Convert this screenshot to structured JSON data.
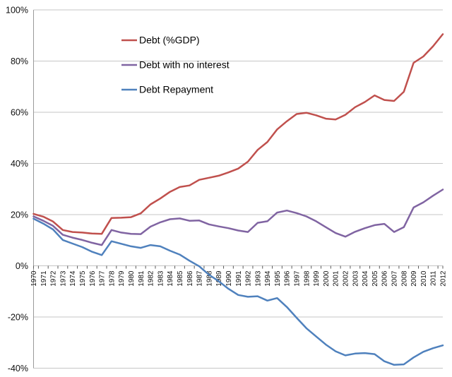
{
  "chart_data": {
    "type": "line",
    "title": "",
    "xlabel": "",
    "ylabel": "",
    "x": [
      1970,
      1971,
      1972,
      1973,
      1974,
      1975,
      1976,
      1977,
      1978,
      1979,
      1980,
      1981,
      1982,
      1983,
      1984,
      1985,
      1986,
      1987,
      1988,
      1989,
      1990,
      1991,
      1992,
      1993,
      1994,
      1995,
      1996,
      1997,
      1998,
      1999,
      2000,
      2001,
      2002,
      2003,
      2004,
      2005,
      2006,
      2007,
      2008,
      2009,
      2010,
      2011,
      2012
    ],
    "series": [
      {
        "name": "Debt (%GDP)",
        "color": "#C0504D",
        "values": [
          20.3,
          19.2,
          17.3,
          14.0,
          13.2,
          13.0,
          12.6,
          12.5,
          18.7,
          18.8,
          19.0,
          20.5,
          24.0,
          26.3,
          28.9,
          30.8,
          31.4,
          33.6,
          34.4,
          35.2,
          36.5,
          38.0,
          40.7,
          45.3,
          48.4,
          53.3,
          56.5,
          59.3,
          59.8,
          58.8,
          57.5,
          57.2,
          59.0,
          62.0,
          64.0,
          66.6,
          64.8,
          64.4,
          68.0,
          79.3,
          81.8,
          85.8,
          90.5
        ]
      },
      {
        "name": "Debt with no interest",
        "color": "#8064A2",
        "values": [
          19.3,
          17.6,
          15.6,
          12.1,
          11.0,
          10.1,
          9.0,
          8.1,
          14.0,
          13.0,
          12.5,
          12.4,
          15.3,
          17.0,
          18.2,
          18.5,
          17.6,
          17.7,
          16.2,
          15.4,
          14.7,
          13.8,
          13.2,
          16.8,
          17.4,
          20.8,
          21.6,
          20.6,
          19.3,
          17.4,
          15.1,
          12.8,
          11.4,
          13.3,
          14.7,
          15.9,
          16.4,
          13.2,
          15.1,
          22.8,
          24.8,
          27.4,
          29.8
        ]
      },
      {
        "name": "Debt Repayment",
        "color": "#4F81BD",
        "values": [
          18.4,
          16.5,
          14.2,
          10.1,
          8.7,
          7.3,
          5.5,
          4.2,
          9.6,
          8.6,
          7.6,
          7.0,
          8.1,
          7.6,
          5.9,
          4.4,
          2.0,
          -0.2,
          -3.5,
          -6.0,
          -9.0,
          -11.4,
          -12.1,
          -11.9,
          -13.6,
          -12.6,
          -16.1,
          -20.3,
          -24.4,
          -27.6,
          -30.8,
          -33.4,
          -35.0,
          -34.3,
          -34.1,
          -34.5,
          -37.3,
          -38.7,
          -38.5,
          -35.8,
          -33.6,
          -32.2,
          -31.1
        ]
      }
    ],
    "ylim": [
      -40,
      100
    ],
    "ytick_values": [
      100,
      80,
      60,
      40,
      20,
      0,
      -20,
      -40
    ],
    "ytick_labels": [
      "100%",
      "80%",
      "60%",
      "40%",
      "20%",
      "0%",
      "-20%",
      "-40%"
    ],
    "grid": true,
    "legend_position": "inside-top-left",
    "styles": {
      "gridline_color": "#c6c6c6",
      "axis_color": "#9a9a9a",
      "tick_color": "#595959",
      "background": "#ffffff",
      "line_width": 2.5
    }
  }
}
